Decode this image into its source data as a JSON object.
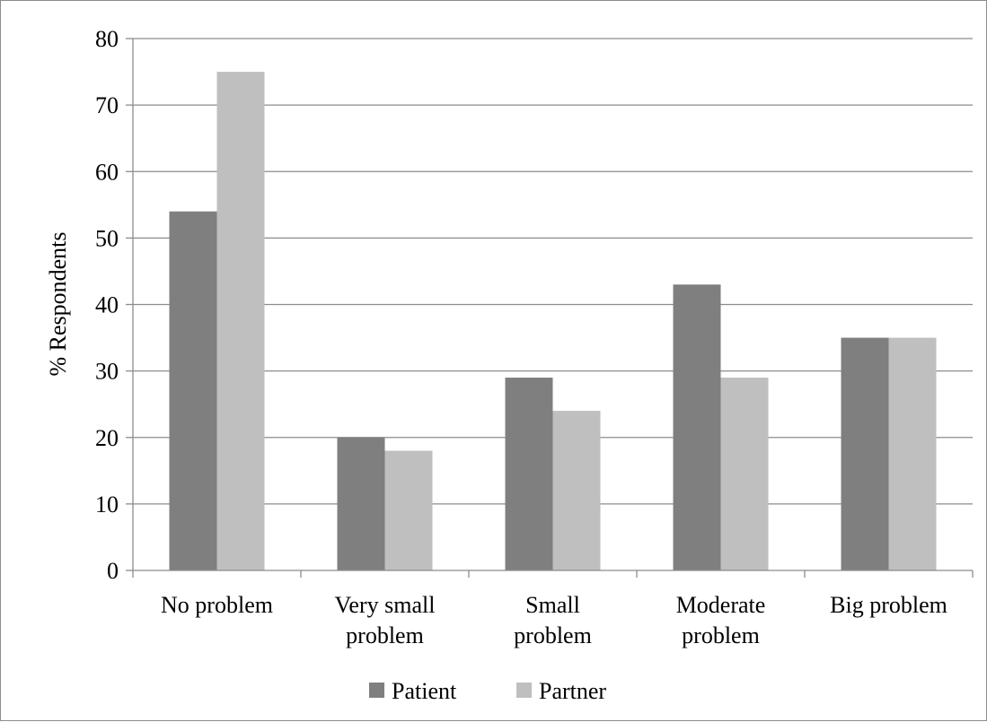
{
  "chart_data": {
    "type": "bar",
    "title": "",
    "xlabel": "",
    "ylabel": "% Respondents",
    "ylim": [
      0,
      80
    ],
    "yticks": [
      0,
      10,
      20,
      30,
      40,
      50,
      60,
      70,
      80
    ],
    "grid": true,
    "legend_position": "bottom",
    "categories": [
      [
        "No problem"
      ],
      [
        "Very small",
        "problem"
      ],
      [
        "Small",
        "problem"
      ],
      [
        "Moderate",
        "problem"
      ],
      [
        "Big problem"
      ]
    ],
    "series": [
      {
        "name": "Patient",
        "color": "#7f7f7f",
        "values": [
          54,
          20,
          29,
          43,
          35
        ]
      },
      {
        "name": "Partner",
        "color": "#bfbfbf",
        "values": [
          75,
          18,
          24,
          29,
          35
        ]
      }
    ]
  }
}
